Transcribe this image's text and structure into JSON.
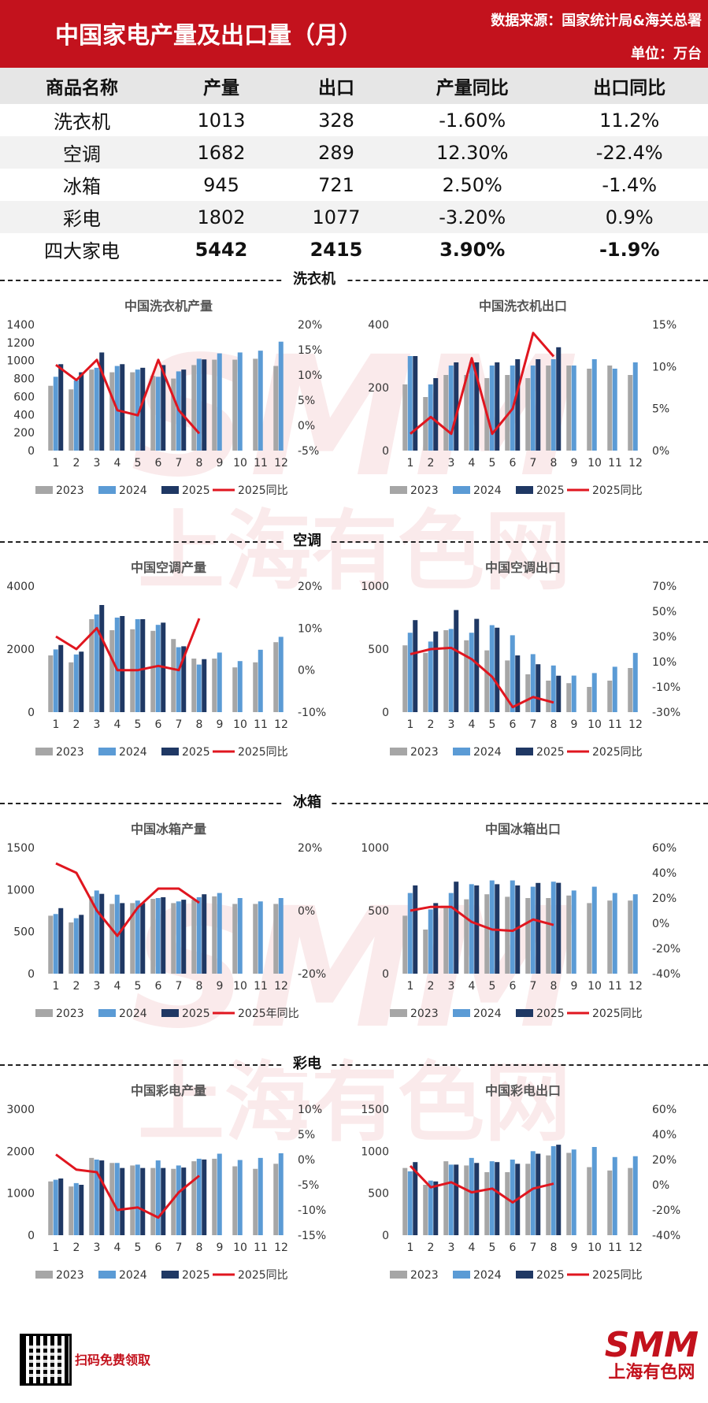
{
  "header": {
    "title": "中国家电产量及出口量（月）",
    "source": "数据来源：国家统计局&海关总署",
    "unit": "单位：万台"
  },
  "table": {
    "headers": [
      "商品名称",
      "产量",
      "出口",
      "产量同比",
      "出口同比"
    ],
    "rows": [
      [
        "洗衣机",
        "1013",
        "328",
        "-1.60%",
        "11.2%"
      ],
      [
        "空调",
        "1682",
        "289",
        "12.30%",
        "-22.4%"
      ],
      [
        "冰箱",
        "945",
        "721",
        "2.50%",
        "-1.4%"
      ],
      [
        "彩电",
        "1802",
        "1077",
        "-3.20%",
        "0.9%"
      ],
      [
        "四大家电",
        "5442",
        "2415",
        "3.90%",
        "-1.9%"
      ]
    ]
  },
  "sections": [
    "洗衣机",
    "空调",
    "冰箱",
    "彩电"
  ],
  "legend": [
    "2023",
    "2024",
    "2025",
    "2025同比",
    "2025年同比"
  ],
  "colors": {
    "y2023": "#a6a6a6",
    "y2024": "#5b9bd5",
    "y2025": "#1f3864",
    "yoy": "#e0161f",
    "brand": "#c3121d"
  },
  "footer": {
    "scan_text": "扫码免费领取",
    "logo_text": "SMM",
    "logo_cn": "上海有色网"
  },
  "chart_data": [
    {
      "type": "bar",
      "title": "中国洗衣机产量",
      "categories": [
        "1",
        "2",
        "3",
        "4",
        "5",
        "6",
        "7",
        "8",
        "9",
        "10",
        "11",
        "12"
      ],
      "series": [
        {
          "name": "2023",
          "values": [
            720,
            680,
            900,
            870,
            870,
            830,
            800,
            950,
            1010,
            1010,
            1020,
            940
          ]
        },
        {
          "name": "2024",
          "values": [
            820,
            780,
            920,
            940,
            900,
            820,
            880,
            1020,
            1080,
            1090,
            1110,
            1210
          ]
        },
        {
          "name": "2025",
          "values": [
            960,
            870,
            1090,
            960,
            920,
            950,
            900,
            1013,
            null,
            null,
            null,
            null
          ]
        },
        {
          "name": "2025同比",
          "axis": "right",
          "values": [
            12,
            9,
            13,
            3,
            2,
            13,
            3,
            -1.6,
            null,
            null,
            null,
            null
          ]
        }
      ],
      "ylim": [
        0,
        1400
      ],
      "y2lim": [
        -5,
        20
      ],
      "yticks": [
        0,
        200,
        400,
        600,
        800,
        1000,
        1200,
        1400
      ],
      "y2ticks": [
        "20%",
        "15%",
        "10%",
        "5%",
        "0%",
        "-5%"
      ],
      "legend_last": "2025同比"
    },
    {
      "type": "bar",
      "title": "中国洗衣机出口",
      "categories": [
        "1",
        "2",
        "3",
        "4",
        "5",
        "6",
        "7",
        "8",
        "9",
        "10",
        "11",
        "12"
      ],
      "series": [
        {
          "name": "2023",
          "values": [
            210,
            170,
            240,
            240,
            230,
            240,
            230,
            270,
            270,
            260,
            270,
            240
          ]
        },
        {
          "name": "2024",
          "values": [
            300,
            210,
            270,
            280,
            270,
            270,
            270,
            290,
            270,
            290,
            260,
            280
          ]
        },
        {
          "name": "2025",
          "values": [
            300,
            230,
            280,
            280,
            280,
            290,
            290,
            328,
            null,
            null,
            null,
            null
          ]
        },
        {
          "name": "2025同比",
          "axis": "right",
          "values": [
            2,
            4,
            2,
            11,
            2,
            5,
            14,
            11.2,
            null,
            null,
            null,
            null
          ]
        }
      ],
      "ylim": [
        0,
        400
      ],
      "y2lim": [
        0,
        15
      ],
      "yticks": [
        0,
        200,
        400
      ],
      "y2ticks": [
        "15%",
        "10%",
        "5%",
        "0%"
      ],
      "legend_last": "2025同比"
    },
    {
      "type": "bar",
      "title": "中国空调产量",
      "categories": [
        "1",
        "2",
        "3",
        "4",
        "5",
        "6",
        "7",
        "8",
        "9",
        "10",
        "11",
        "12"
      ],
      "series": [
        {
          "name": "2023",
          "values": [
            1800,
            1580,
            2950,
            2600,
            2630,
            2580,
            2320,
            1700,
            1700,
            1420,
            1580,
            2220
          ]
        },
        {
          "name": "2024",
          "values": [
            1990,
            1830,
            3100,
            3000,
            2950,
            2770,
            2060,
            1510,
            1890,
            1620,
            1980,
            2390
          ]
        },
        {
          "name": "2025",
          "values": [
            2130,
            1920,
            3400,
            3050,
            2950,
            2840,
            2090,
            1682,
            null,
            null,
            null,
            null
          ]
        },
        {
          "name": "2025同比",
          "axis": "right",
          "values": [
            8,
            5,
            10,
            0,
            0,
            1,
            0,
            12.3,
            null,
            null,
            null,
            null
          ]
        }
      ],
      "ylim": [
        0,
        4000
      ],
      "y2lim": [
        -10,
        20
      ],
      "yticks": [
        0,
        2000,
        4000
      ],
      "y2ticks": [
        "20%",
        "10%",
        "0%",
        "-10%"
      ],
      "legend_last": "2025同比"
    },
    {
      "type": "bar",
      "title": "中国空调出口",
      "categories": [
        "1",
        "2",
        "3",
        "4",
        "5",
        "6",
        "7",
        "8",
        "9",
        "10",
        "11",
        "12"
      ],
      "series": [
        {
          "name": "2023",
          "values": [
            530,
            470,
            650,
            570,
            490,
            410,
            300,
            250,
            230,
            200,
            250,
            350
          ]
        },
        {
          "name": "2024",
          "values": [
            630,
            560,
            660,
            630,
            690,
            610,
            460,
            370,
            290,
            310,
            360,
            470
          ]
        },
        {
          "name": "2025",
          "values": [
            730,
            640,
            810,
            740,
            670,
            450,
            380,
            289,
            null,
            null,
            null,
            null
          ]
        },
        {
          "name": "2025同比",
          "axis": "right",
          "values": [
            16,
            20,
            21,
            12,
            -2,
            -26,
            -18,
            -22.4,
            null,
            null,
            null,
            null
          ]
        }
      ],
      "ylim": [
        0,
        1000
      ],
      "y2lim": [
        -30,
        70
      ],
      "yticks": [
        0,
        500,
        1000
      ],
      "y2ticks": [
        "70%",
        "50%",
        "30%",
        "10%",
        "-10%",
        "-30%"
      ],
      "legend_last": "2025同比"
    },
    {
      "type": "bar",
      "title": "中国冰箱产量",
      "categories": [
        "1",
        "2",
        "3",
        "4",
        "5",
        "6",
        "7",
        "8",
        "9",
        "10",
        "11",
        "12"
      ],
      "series": [
        {
          "name": "2023",
          "values": [
            690,
            610,
            920,
            830,
            840,
            890,
            840,
            880,
            920,
            830,
            830,
            830
          ]
        },
        {
          "name": "2024",
          "values": [
            710,
            660,
            990,
            940,
            870,
            900,
            860,
            910,
            960,
            900,
            860,
            900
          ]
        },
        {
          "name": "2025",
          "values": [
            780,
            700,
            950,
            840,
            840,
            910,
            880,
            945,
            null,
            null,
            null,
            null
          ]
        },
        {
          "name": "2025年同比",
          "axis": "right",
          "values": [
            15,
            12,
            0,
            -8,
            1,
            7,
            7,
            2.5,
            null,
            null,
            null,
            null
          ]
        }
      ],
      "ylim": [
        0,
        1500
      ],
      "y2lim": [
        -20,
        20
      ],
      "yticks": [
        0,
        500,
        1000,
        1500
      ],
      "y2ticks": [
        "20%",
        "0%",
        "-20%"
      ],
      "legend_last": "2025年同比"
    },
    {
      "type": "bar",
      "title": "中国冰箱出口",
      "categories": [
        "1",
        "2",
        "3",
        "4",
        "5",
        "6",
        "7",
        "8",
        "9",
        "10",
        "11",
        "12"
      ],
      "series": [
        {
          "name": "2023",
          "values": [
            460,
            350,
            520,
            590,
            630,
            610,
            600,
            600,
            620,
            560,
            580,
            580
          ]
        },
        {
          "name": "2024",
          "values": [
            640,
            510,
            640,
            710,
            740,
            740,
            690,
            730,
            660,
            690,
            640,
            630
          ]
        },
        {
          "name": "2025",
          "values": [
            700,
            560,
            730,
            700,
            710,
            700,
            720,
            721,
            null,
            null,
            null,
            null
          ]
        },
        {
          "name": "2025同比",
          "axis": "right",
          "values": [
            10,
            13,
            13,
            1,
            -5,
            -6,
            3,
            -1.4,
            null,
            null,
            null,
            null
          ]
        }
      ],
      "ylim": [
        0,
        1000
      ],
      "y2lim": [
        -40,
        60
      ],
      "yticks": [
        0,
        500,
        1000
      ],
      "y2ticks": [
        "60%",
        "40%",
        "20%",
        "0%",
        "-20%",
        "-40%"
      ],
      "legend_last": "2025同比"
    },
    {
      "type": "bar",
      "title": "中国彩电产量",
      "categories": [
        "1",
        "2",
        "3",
        "4",
        "5",
        "6",
        "7",
        "8",
        "9",
        "10",
        "11",
        "12"
      ],
      "series": [
        {
          "name": "2023",
          "values": [
            1280,
            1160,
            1840,
            1720,
            1660,
            1600,
            1580,
            1760,
            1820,
            1640,
            1580,
            1700
          ]
        },
        {
          "name": "2024",
          "values": [
            1320,
            1240,
            1800,
            1720,
            1680,
            1780,
            1660,
            1820,
            1940,
            1790,
            1840,
            1950
          ]
        },
        {
          "name": "2025",
          "values": [
            1350,
            1200,
            1780,
            1600,
            1600,
            1600,
            1610,
            1802,
            null,
            null,
            null,
            null
          ]
        },
        {
          "name": "2025同比",
          "axis": "right",
          "values": [
            1,
            -2,
            -2.5,
            -10,
            -9.5,
            -11.5,
            -6.5,
            -3.2,
            null,
            null,
            null,
            null
          ]
        }
      ],
      "ylim": [
        0,
        3000
      ],
      "y2lim": [
        -15,
        10
      ],
      "yticks": [
        0,
        1000,
        2000,
        3000
      ],
      "y2ticks": [
        "10%",
        "5%",
        "0%",
        "-5%",
        "-10%",
        "-15%"
      ],
      "legend_last": "2025同比"
    },
    {
      "type": "bar",
      "title": "中国彩电出口",
      "categories": [
        "1",
        "2",
        "3",
        "4",
        "5",
        "6",
        "7",
        "8",
        "9",
        "10",
        "11",
        "12"
      ],
      "series": [
        {
          "name": "2023",
          "values": [
            800,
            600,
            880,
            830,
            750,
            750,
            850,
            950,
            980,
            810,
            770,
            800
          ]
        },
        {
          "name": "2024",
          "values": [
            760,
            650,
            840,
            920,
            880,
            900,
            1000,
            1060,
            1020,
            1050,
            930,
            940
          ]
        },
        {
          "name": "2025",
          "values": [
            870,
            640,
            840,
            860,
            870,
            850,
            970,
            1077,
            null,
            null,
            null,
            null
          ]
        },
        {
          "name": "2025同比",
          "axis": "right",
          "values": [
            15,
            -2,
            2,
            -6,
            -3,
            -14,
            -3,
            0.9,
            null,
            null,
            null,
            null
          ]
        }
      ],
      "ylim": [
        0,
        1500
      ],
      "y2lim": [
        -40,
        60
      ],
      "yticks": [
        0,
        500,
        1000,
        1500
      ],
      "y2ticks": [
        "60%",
        "40%",
        "20%",
        "0%",
        "-20%",
        "-40%"
      ],
      "legend_last": "2025同比"
    }
  ]
}
